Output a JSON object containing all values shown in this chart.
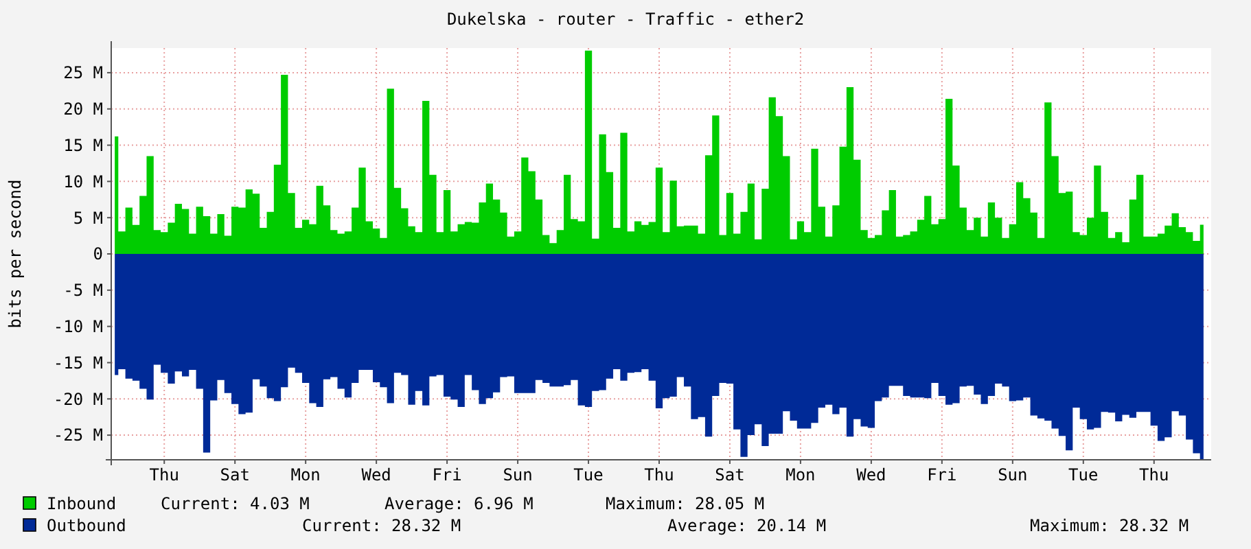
{
  "chart_data": {
    "type": "area",
    "title": "Dukelska - router - Traffic - ether2",
    "ylabel": "bits per second",
    "categories": [
      null,
      null,
      null,
      null,
      null,
      null,
      null,
      "Thu",
      null,
      null,
      null,
      null,
      null,
      null,
      null,
      null,
      null,
      "Sat",
      null,
      null,
      null,
      null,
      null,
      null,
      null,
      null,
      null,
      "Mon",
      null,
      null,
      null,
      null,
      null,
      null,
      null,
      null,
      null,
      "Wed",
      null,
      null,
      null,
      null,
      null,
      null,
      null,
      null,
      null,
      "Fri",
      null,
      null,
      null,
      null,
      null,
      null,
      null,
      null,
      null,
      "Sun",
      null,
      null,
      null,
      null,
      null,
      null,
      null,
      null,
      null,
      "Tue",
      null,
      null,
      null,
      null,
      null,
      null,
      null,
      null,
      null,
      "Thu",
      null,
      null,
      null,
      null,
      null,
      null,
      null,
      null,
      null,
      "Sat",
      null,
      null,
      null,
      null,
      null,
      null,
      null,
      null,
      null,
      "Mon",
      null,
      null,
      null,
      null,
      null,
      null,
      null,
      null,
      null,
      "Wed",
      null,
      null,
      null,
      null,
      null,
      null,
      null,
      null,
      null,
      "Fri",
      null,
      null,
      null,
      null,
      null,
      null,
      null,
      null,
      null,
      "Sun",
      null,
      null,
      null,
      null,
      null,
      null,
      null,
      null,
      null,
      "Tue",
      null,
      null,
      null,
      null,
      null,
      null,
      null,
      null,
      null,
      "Thu",
      null,
      null,
      null,
      null,
      null,
      null,
      null
    ],
    "series": [
      {
        "name": "Inbound",
        "color": "#00cc00",
        "values": [
          16.2,
          3.1,
          6.4,
          4.0,
          8.0,
          13.5,
          3.3,
          3.0,
          4.3,
          6.9,
          6.2,
          2.8,
          6.5,
          5.2,
          2.8,
          5.5,
          2.5,
          6.5,
          6.4,
          8.9,
          8.3,
          3.6,
          5.8,
          12.3,
          24.7,
          8.4,
          3.6,
          4.7,
          4.1,
          9.4,
          6.7,
          3.3,
          2.8,
          3.1,
          6.4,
          11.9,
          4.5,
          3.5,
          2.2,
          22.8,
          9.1,
          6.3,
          3.8,
          3.0,
          21.1,
          10.9,
          3.0,
          8.8,
          3.1,
          4.1,
          4.4,
          4.3,
          7.1,
          9.7,
          7.5,
          5.7,
          2.4,
          3.1,
          13.3,
          11.4,
          7.5,
          2.6,
          1.5,
          3.3,
          10.9,
          4.8,
          4.5,
          28.05,
          2.1,
          16.5,
          11.3,
          3.6,
          16.7,
          3.1,
          4.5,
          4.0,
          4.4,
          11.9,
          3.0,
          10.1,
          3.8,
          3.9,
          3.9,
          2.8,
          13.6,
          19.1,
          2.6,
          8.4,
          2.8,
          5.8,
          9.7,
          2.0,
          9.0,
          21.6,
          19.0,
          13.5,
          2.0,
          4.5,
          3.0,
          14.5,
          6.5,
          2.4,
          6.7,
          14.8,
          23.0,
          13.0,
          3.3,
          2.2,
          2.6,
          6.0,
          8.8,
          2.4,
          2.6,
          3.1,
          4.7,
          8.0,
          4.1,
          4.8,
          21.4,
          12.2,
          6.4,
          3.3,
          5.0,
          2.4,
          7.1,
          5.0,
          2.2,
          4.1,
          9.9,
          7.7,
          5.7,
          2.2,
          20.9,
          13.5,
          8.4,
          8.6,
          3.0,
          2.6,
          5.0,
          12.2,
          5.8,
          2.2,
          3.0,
          1.6,
          7.5,
          10.9,
          2.4,
          2.4,
          2.8,
          3.9,
          5.6,
          3.7,
          3.0,
          1.8,
          4.03
        ]
      },
      {
        "name": "Outbound",
        "color": "#002a97",
        "values": [
          -16.7,
          -15.9,
          -17.2,
          -17.5,
          -18.6,
          -20.1,
          -15.3,
          -16.4,
          -17.9,
          -16.2,
          -16.9,
          -16.0,
          -18.6,
          -27.4,
          -20.2,
          -17.4,
          -19.2,
          -20.7,
          -22.1,
          -21.9,
          -17.3,
          -18.3,
          -19.9,
          -20.3,
          -18.4,
          -15.7,
          -16.4,
          -17.8,
          -20.6,
          -21.1,
          -17.3,
          -17.0,
          -18.6,
          -19.8,
          -17.8,
          -16.0,
          -16.0,
          -17.7,
          -18.4,
          -20.6,
          -16.4,
          -16.7,
          -20.8,
          -18.9,
          -20.9,
          -16.9,
          -16.7,
          -19.7,
          -20.1,
          -21.1,
          -16.7,
          -18.8,
          -20.7,
          -19.9,
          -19.1,
          -17.0,
          -16.9,
          -19.2,
          -19.2,
          -19.2,
          -17.4,
          -17.8,
          -18.3,
          -18.3,
          -18.1,
          -17.4,
          -20.9,
          -21.1,
          -18.9,
          -18.8,
          -17.2,
          -15.9,
          -17.5,
          -16.4,
          -16.3,
          -15.9,
          -17.5,
          -21.3,
          -19.9,
          -19.7,
          -17.0,
          -18.3,
          -22.8,
          -22.5,
          -25.2,
          -19.6,
          -17.8,
          -17.9,
          -24.2,
          -28.0,
          -25.0,
          -23.5,
          -26.5,
          -24.8,
          -24.8,
          -21.7,
          -23.0,
          -24.1,
          -24.1,
          -23.3,
          -21.2,
          -20.8,
          -22.1,
          -21.2,
          -25.2,
          -22.8,
          -23.8,
          -24.0,
          -20.3,
          -19.8,
          -18.2,
          -18.2,
          -19.6,
          -19.8,
          -19.8,
          -19.9,
          -17.8,
          -19.6,
          -20.8,
          -20.6,
          -18.3,
          -18.2,
          -19.4,
          -20.7,
          -19.6,
          -17.9,
          -18.3,
          -20.3,
          -20.2,
          -19.8,
          -22.3,
          -22.7,
          -23.0,
          -24.1,
          -25.1,
          -27.1,
          -21.2,
          -22.8,
          -24.2,
          -24.0,
          -21.8,
          -21.9,
          -23.1,
          -22.2,
          -22.6,
          -21.8,
          -21.8,
          -23.7,
          -25.8,
          -25.3,
          -21.7,
          -22.3,
          -25.6,
          -27.5,
          -28.32
        ]
      }
    ],
    "ylim": [
      -28.4,
      28.4
    ],
    "yticks": [
      {
        "value": -25,
        "label": "-25 M"
      },
      {
        "value": -20,
        "label": "-20 M"
      },
      {
        "value": -15,
        "label": "-15 M"
      },
      {
        "value": -10,
        "label": "-10 M"
      },
      {
        "value": -5,
        "label": "-5 M"
      },
      {
        "value": 0,
        "label": "0"
      },
      {
        "value": 5,
        "label": "5 M"
      },
      {
        "value": 10,
        "label": "10 M"
      },
      {
        "value": 15,
        "label": "15 M"
      },
      {
        "value": 20,
        "label": "20 M"
      },
      {
        "value": 25,
        "label": "25 M"
      }
    ],
    "grid": true,
    "legend": "bottom",
    "annotations": [
      "Current: 4.03 M",
      "Average: 6.96 M",
      "Maximum: 28.05 M",
      "Current: 28.32 M",
      "Average: 20.14 M",
      "Maximum: 28.32 M"
    ]
  }
}
